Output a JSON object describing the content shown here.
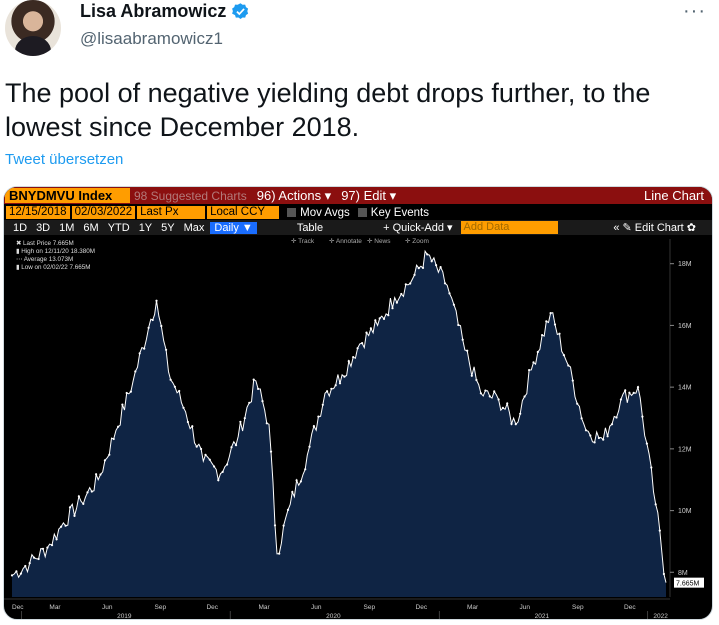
{
  "tweet": {
    "display_name": "Lisa Abramowicz",
    "handle": "@lisaabramowicz1",
    "more": "···",
    "text": "The pool of negative yielding debt drops further, to the lowest since December 2018.",
    "translate": "Tweet übersetzen"
  },
  "terminal": {
    "ticker": "BNYDMVU Index",
    "suggested": "98 Suggested Charts",
    "actions": "96) Actions ▾",
    "edit": "97) Edit ▾",
    "chart_type": "Line Chart",
    "start_date": "12/15/2018",
    "end_date": "02/03/2022",
    "price_field": "Last Px",
    "currency": "Local CCY",
    "mov_avgs": "Mov Avgs",
    "key_events": "Key Events",
    "periods": [
      "1D",
      "3D",
      "1M",
      "6M",
      "YTD",
      "1Y",
      "5Y",
      "Max"
    ],
    "daily": "Daily ▼",
    "table": "Table",
    "quick_add": "+ Quick-Add ▾",
    "add_data_placeholder": "Add Data",
    "edit_chart": "« ✎ Edit Chart ✿",
    "tools": [
      "Track",
      "Annotate",
      "News",
      "Zoom"
    ]
  },
  "chart_data": {
    "type": "line",
    "title": "BNYDMVU Index",
    "legend": [
      "Last Price 7.665M",
      "High on 12/11/20 18.380M",
      "Average 13.073M",
      "Low on 02/02/22 7.665M"
    ],
    "y_ticks": [
      "8M",
      "10M",
      "12M",
      "14M",
      "16M",
      "18M"
    ],
    "ylim": [
      7.2,
      18.8
    ],
    "last_label": "7.665M",
    "x_month_ticks": [
      "Dec",
      "Mar",
      "Jun",
      "Sep",
      "Dec",
      "Mar",
      "Jun",
      "Sep",
      "Dec",
      "Mar",
      "Jun",
      "Sep",
      "Dec"
    ],
    "x_year_labels": [
      "2019",
      "2020",
      "2021",
      "2022"
    ],
    "x": [
      "2018-12-15",
      "2019-01-15",
      "2019-02-15",
      "2019-03-15",
      "2019-04-15",
      "2019-05-15",
      "2019-06-15",
      "2019-07-15",
      "2019-08-15",
      "2019-08-25",
      "2019-09-15",
      "2019-10-15",
      "2019-11-15",
      "2019-12-15",
      "2020-01-15",
      "2020-02-15",
      "2020-03-09",
      "2020-03-23",
      "2020-04-15",
      "2020-05-15",
      "2020-06-15",
      "2020-07-15",
      "2020-08-15",
      "2020-09-15",
      "2020-10-15",
      "2020-11-15",
      "2020-12-11",
      "2021-01-15",
      "2021-02-15",
      "2021-03-15",
      "2021-04-15",
      "2021-05-15",
      "2021-06-15",
      "2021-07-15",
      "2021-08-15",
      "2021-09-15",
      "2021-10-15",
      "2021-11-15",
      "2021-12-15",
      "2022-01-15",
      "2022-02-02"
    ],
    "values": [
      7.9,
      8.3,
      8.8,
      9.6,
      10.3,
      11.0,
      12.6,
      14.2,
      16.2,
      16.8,
      14.5,
      13.2,
      11.6,
      11.2,
      12.4,
      14.2,
      12.8,
      8.6,
      10.2,
      11.8,
      13.8,
      14.4,
      15.4,
      16.0,
      16.9,
      17.5,
      18.3,
      17.3,
      15.2,
      13.8,
      13.6,
      12.8,
      14.8,
      16.4,
      14.7,
      12.6,
      12.3,
      13.6,
      14.0,
      10.2,
      7.665
    ]
  },
  "colors": {
    "accent": "#1d9bf0",
    "terminal_orange": "#ff9d00",
    "terminal_red": "#8b0f0f",
    "chart_fill": "#0f2444",
    "chart_line": "#ffffff"
  }
}
